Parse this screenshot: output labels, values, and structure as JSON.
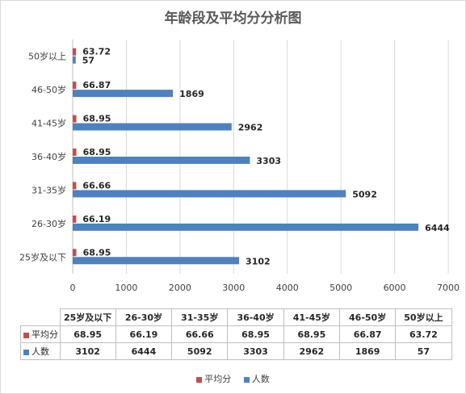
{
  "colors": {
    "score": "#c0504d",
    "count": "#4f81bd",
    "grid": "#d9d9d9"
  },
  "chart_data": {
    "type": "bar",
    "orientation": "horizontal",
    "title": "年龄段及平均分分析图",
    "categories": [
      "25岁及以下",
      "26-30岁",
      "31-35岁",
      "36-40岁",
      "41-45岁",
      "46-50岁",
      "50岁以上"
    ],
    "series": [
      {
        "name": "平均分",
        "values": [
          68.95,
          66.19,
          66.66,
          68.95,
          68.95,
          66.87,
          63.72
        ],
        "labels": [
          "68.95",
          "66.19",
          "66.66",
          "68.95",
          "68.95",
          "66.87",
          "63.72"
        ]
      },
      {
        "name": "人数",
        "values": [
          3102,
          6444,
          5092,
          3303,
          2962,
          1869,
          57
        ],
        "labels": [
          "3102",
          "6444",
          "5092",
          "3303",
          "2962",
          "1869",
          "57"
        ]
      }
    ],
    "xlim": [
      0,
      7000
    ],
    "xticks": [
      "0",
      "1000",
      "2000",
      "3000",
      "4000",
      "5000",
      "6000",
      "7000"
    ],
    "grid": true,
    "legend_position": "bottom",
    "data_table": true
  }
}
